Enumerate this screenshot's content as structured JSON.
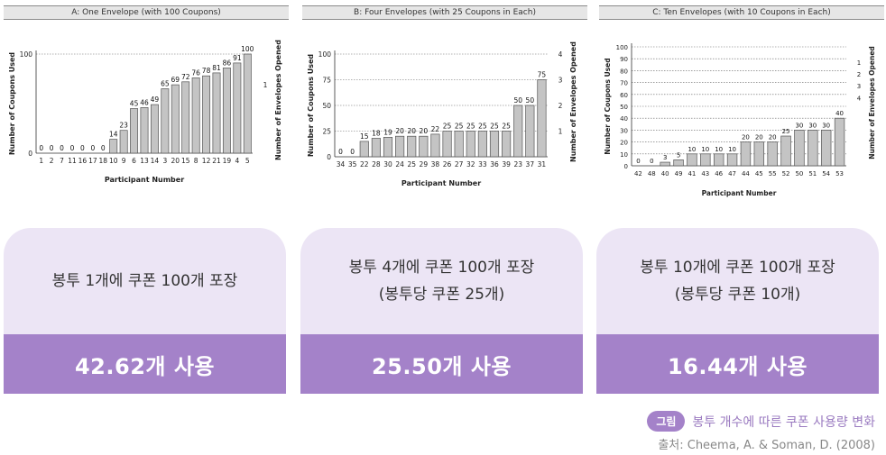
{
  "chart_data": [
    {
      "type": "bar",
      "title": "A: One Envelope (with 100 Coupons)",
      "xlabel": "Participant Number",
      "ylabel": "Number of Coupons Used",
      "y2label": "Number of Envelopes Opened",
      "categories": [
        "1",
        "2",
        "7",
        "11",
        "16",
        "17",
        "18",
        "10",
        "9",
        "6",
        "13",
        "14",
        "3",
        "20",
        "15",
        "8",
        "12",
        "21",
        "19",
        "4",
        "5"
      ],
      "values": [
        0,
        0,
        0,
        0,
        0,
        0,
        0,
        14,
        23,
        45,
        46,
        49,
        65,
        69,
        72,
        76,
        78,
        81,
        86,
        91,
        100
      ],
      "data_labels": [
        "0",
        "0",
        "0",
        "0",
        "0",
        "0",
        "0",
        "14",
        "23",
        "45",
        "46",
        "49",
        "65",
        "69",
        "72",
        "76",
        "78",
        "81",
        "86",
        "91",
        "100"
      ],
      "ylim": [
        0,
        100
      ],
      "yticks": [
        0,
        100
      ],
      "y2ticks": [
        1
      ],
      "grid": true
    },
    {
      "type": "bar",
      "title": "B: Four Envelopes (with 25 Coupons in Each)",
      "xlabel": "Participant Number",
      "ylabel": "Number of Coupons Used",
      "y2label": "Number of Envelopes Opened",
      "categories": [
        "34",
        "35",
        "22",
        "28",
        "30",
        "24",
        "25",
        "29",
        "38",
        "26",
        "27",
        "32",
        "33",
        "36",
        "39",
        "23",
        "37",
        "31"
      ],
      "values": [
        0,
        0,
        15,
        18,
        19,
        20,
        20,
        20,
        22,
        25,
        25,
        25,
        25,
        25,
        25,
        50,
        50,
        75
      ],
      "data_labels": [
        "0",
        "0",
        "15",
        "18",
        "19",
        "20",
        "20",
        "20",
        "22",
        "25",
        "25",
        "25",
        "25",
        "25",
        "25",
        "50",
        "50",
        "75"
      ],
      "ylim": [
        0,
        100
      ],
      "yticks": [
        0,
        25,
        50,
        75,
        100
      ],
      "y2ticks": [
        1,
        2,
        3,
        4
      ],
      "grid": true
    },
    {
      "type": "bar",
      "title": "C: Ten Envelopes (with 10 Coupons in Each)",
      "xlabel": "Participant Number",
      "ylabel": "Number of Coupons Used",
      "y2label": "Number of Envelopes Opened",
      "categories": [
        "42",
        "48",
        "40",
        "49",
        "41",
        "43",
        "46",
        "47",
        "44",
        "45",
        "55",
        "52",
        "50",
        "51",
        "54",
        "53"
      ],
      "values": [
        0,
        0,
        3,
        5,
        10,
        10,
        10,
        10,
        20,
        20,
        20,
        25,
        30,
        30,
        30,
        40
      ],
      "data_labels": [
        "0",
        "0",
        "3",
        "5",
        "10",
        "10",
        "10",
        "10",
        "20",
        "20",
        "20",
        "25",
        "30",
        "30",
        "30",
        "40"
      ],
      "ylim": [
        0,
        100
      ],
      "yticks": [
        0,
        10,
        20,
        30,
        40,
        50,
        60,
        70,
        80,
        90,
        100
      ],
      "y2ticks": [
        1,
        2,
        3,
        4
      ],
      "grid": true
    }
  ],
  "cards": [
    {
      "line1": "봉투 1개에 쿠폰 100개 포장",
      "line2": "",
      "result": "42.62개 사용"
    },
    {
      "line1": "봉투 4개에 쿠폰 100개 포장",
      "line2": "(봉투당 쿠폰 25개)",
      "result": "25.50개 사용"
    },
    {
      "line1": "봉투 10개에 쿠폰 100개 포장",
      "line2": "(봉투당 쿠폰 10개)",
      "result": "16.44개 사용"
    }
  ],
  "caption": {
    "badge": "그림",
    "text": "봉투 개수에 따른 쿠폰 사용량 변화"
  },
  "source": "출처: Cheema, A. & Soman, D. (2008)",
  "colors": {
    "bar_fill": "#c4c4c4",
    "bar_stroke": "#555555",
    "card_top": "#ece5f5",
    "card_bottom": "#a482c9",
    "title_bg": "#e6e6e6"
  }
}
